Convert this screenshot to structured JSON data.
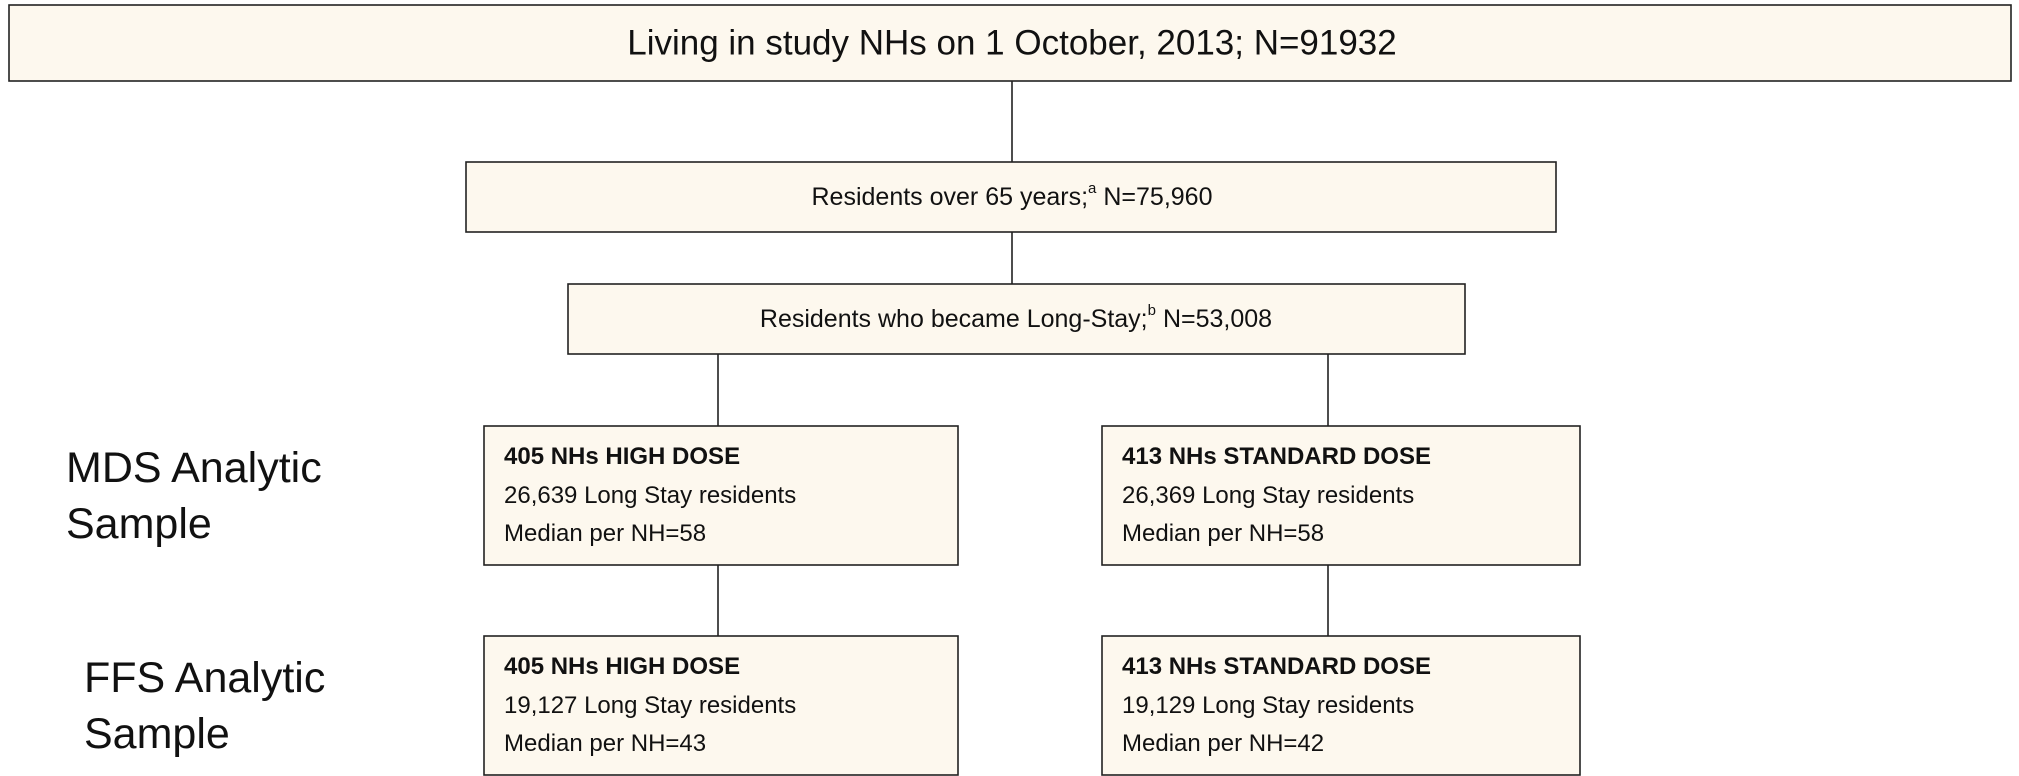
{
  "nodes": [
    {
      "text": "Living in study NHs on 1 October, 2013; N=91932"
    },
    {
      "text": "Residents over 65 years;",
      "note": "a",
      "count": "N=75,960"
    },
    {
      "text": "Residents who became Long-Stay;",
      "note": "b",
      "count": "N=53,008"
    },
    {
      "title": "405 NHs HIGH DOSE",
      "lines": [
        "26,639 Long Stay residents",
        "Median per NH=58"
      ]
    },
    {
      "title": "413 NHs STANDARD DOSE",
      "lines": [
        "26,369 Long Stay residents",
        "Median per NH=58"
      ]
    },
    {
      "title": "405 NHs HIGH DOSE",
      "lines": [
        "19,127 Long Stay residents",
        "Median per NH=43"
      ]
    },
    {
      "title": "413 NHs STANDARD DOSE",
      "lines": [
        "19,129 Long Stay residents",
        "Median per NH=42"
      ]
    }
  ],
  "side_labels": [
    {
      "lines": [
        "MDS Analytic",
        "Sample"
      ]
    },
    {
      "lines": [
        "FFS Analytic",
        "Sample"
      ]
    }
  ]
}
